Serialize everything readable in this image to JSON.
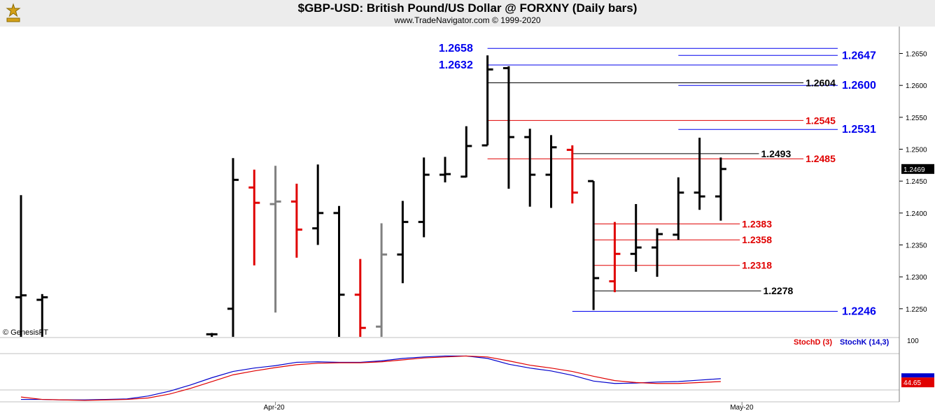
{
  "header": {
    "title": "$GBP-USD:  British Pound/US Dollar @ FORXNY  (Daily bars)",
    "subtitle": "www.TradeNavigator.com © 1999-2020"
  },
  "watermark": "© GenesisFT",
  "colors": {
    "up": "#000000",
    "down": "#e00000",
    "neutral": "#808080",
    "blue_level": "#0000ee",
    "red_level": "#e00000",
    "black_level": "#000000",
    "stochK": "#0000cc",
    "stochD": "#e00000"
  },
  "chart_data": [
    {
      "type": "ohlc",
      "title": "$GBP-USD:  British Pound/US Dollar @ FORXNY  (Daily bars)",
      "ylim": [
        1.2206,
        1.269
      ],
      "y_ticks": [
        "1.2650",
        "1.2600",
        "1.2550",
        "1.2500",
        "1.2450",
        "1.2400",
        "1.2350",
        "1.2300",
        "1.2250"
      ],
      "x_labels": [
        {
          "label": "Apr-20",
          "index": 12
        },
        {
          "label": "May-20",
          "index": 34
        }
      ],
      "last_price": "1.2469",
      "bars": [
        {
          "i": 0,
          "o": 1.2268,
          "h": 1.2428,
          "l": 1.2206,
          "c": 1.2271,
          "color": "up"
        },
        {
          "i": 1,
          "o": 1.2264,
          "h": 1.2273,
          "l": 1.2206,
          "c": 1.2268,
          "color": "up"
        },
        {
          "i": 9,
          "o": 1.221,
          "h": 1.2212,
          "l": 1.2206,
          "c": 1.221,
          "color": "up"
        },
        {
          "i": 10,
          "o": 1.225,
          "h": 1.2486,
          "l": 1.2206,
          "c": 1.2452,
          "color": "up"
        },
        {
          "i": 11,
          "o": 1.244,
          "h": 1.2468,
          "l": 1.2318,
          "c": 1.2416,
          "color": "down"
        },
        {
          "i": 12,
          "o": 1.2414,
          "h": 1.2474,
          "l": 1.2244,
          "c": 1.2418,
          "color": "neutral"
        },
        {
          "i": 13,
          "o": 1.2418,
          "h": 1.2446,
          "l": 1.233,
          "c": 1.2374,
          "color": "down"
        },
        {
          "i": 14,
          "o": 1.2376,
          "h": 1.2476,
          "l": 1.235,
          "c": 1.24,
          "color": "up"
        },
        {
          "i": 15,
          "o": 1.24,
          "h": 1.2411,
          "l": 1.2206,
          "c": 1.2272,
          "color": "up"
        },
        {
          "i": 16,
          "o": 1.2272,
          "h": 1.2328,
          "l": 1.2206,
          "c": 1.222,
          "color": "down"
        },
        {
          "i": 17,
          "o": 1.2222,
          "h": 1.2384,
          "l": 1.2206,
          "c": 1.2335,
          "color": "neutral"
        },
        {
          "i": 18,
          "o": 1.2335,
          "h": 1.2419,
          "l": 1.229,
          "c": 1.2386,
          "color": "up"
        },
        {
          "i": 19,
          "o": 1.2386,
          "h": 1.2487,
          "l": 1.2362,
          "c": 1.246,
          "color": "up"
        },
        {
          "i": 20,
          "o": 1.246,
          "h": 1.2488,
          "l": 1.2448,
          "c": 1.2461,
          "color": "up"
        },
        {
          "i": 21,
          "o": 1.2457,
          "h": 1.2536,
          "l": 1.2456,
          "c": 1.2505,
          "color": "up"
        },
        {
          "i": 22,
          "o": 1.2506,
          "h": 1.2647,
          "l": 1.2506,
          "c": 1.2625,
          "color": "up"
        },
        {
          "i": 23,
          "o": 1.2627,
          "h": 1.263,
          "l": 1.2438,
          "c": 1.2519,
          "color": "up"
        },
        {
          "i": 24,
          "o": 1.2519,
          "h": 1.2532,
          "l": 1.241,
          "c": 1.246,
          "color": "up"
        },
        {
          "i": 25,
          "o": 1.246,
          "h": 1.2522,
          "l": 1.2408,
          "c": 1.2503,
          "color": "up"
        },
        {
          "i": 26,
          "o": 1.2499,
          "h": 1.2506,
          "l": 1.2415,
          "c": 1.2432,
          "color": "down"
        },
        {
          "i": 27,
          "o": 1.245,
          "h": 1.245,
          "l": 1.2248,
          "c": 1.2298,
          "color": "up"
        },
        {
          "i": 28,
          "o": 1.2293,
          "h": 1.2386,
          "l": 1.2276,
          "c": 1.2336,
          "color": "down"
        },
        {
          "i": 29,
          "o": 1.2336,
          "h": 1.2414,
          "l": 1.2308,
          "c": 1.2346,
          "color": "up"
        },
        {
          "i": 30,
          "o": 1.2346,
          "h": 1.2376,
          "l": 1.23,
          "c": 1.2367,
          "color": "up"
        },
        {
          "i": 31,
          "o": 1.2366,
          "h": 1.2456,
          "l": 1.2358,
          "c": 1.2432,
          "color": "up"
        },
        {
          "i": 32,
          "o": 1.2432,
          "h": 1.2518,
          "l": 1.2405,
          "c": 1.2426,
          "color": "up"
        },
        {
          "i": 33,
          "o": 1.2426,
          "h": 1.2487,
          "l": 1.2388,
          "c": 1.2469,
          "color": "up"
        }
      ],
      "levels": [
        {
          "label": "1.2658",
          "value": 1.2658,
          "color": "blue",
          "from": 22,
          "to": 40,
          "label_at": "left",
          "label_index": 19.7
        },
        {
          "label": "1.2632",
          "value": 1.2632,
          "color": "blue",
          "from": 22,
          "to": 40,
          "label_at": "left",
          "label_index": 19.7
        },
        {
          "label": "1.2647",
          "value": 1.2647,
          "color": "blue",
          "from": 31,
          "to": 40,
          "label_at": "right"
        },
        {
          "label": "1.2600",
          "value": 1.26,
          "color": "blue",
          "from": 31,
          "to": 40,
          "label_at": "right"
        },
        {
          "label": "1.2531",
          "value": 1.2531,
          "color": "blue",
          "from": 31,
          "to": 40,
          "label_at": "right"
        },
        {
          "label": "1.2246",
          "value": 1.2246,
          "color": "blue",
          "from": 26,
          "to": 40,
          "label_at": "right"
        },
        {
          "label": "1.2604",
          "value": 1.2604,
          "color": "black",
          "from": 22,
          "to": 36.9,
          "label_at": "end"
        },
        {
          "label": "1.2493",
          "value": 1.2493,
          "color": "black",
          "from": 26,
          "to": 34.8,
          "label_at": "end"
        },
        {
          "label": "1.2278",
          "value": 1.2278,
          "color": "black",
          "from": 27,
          "to": 34.9,
          "label_at": "end"
        },
        {
          "label": "1.2545",
          "value": 1.2545,
          "color": "red",
          "from": 22,
          "to": 36.9,
          "label_at": "end"
        },
        {
          "label": "1.2485",
          "value": 1.2485,
          "color": "red",
          "from": 22,
          "to": 36.9,
          "label_at": "end"
        },
        {
          "label": "1.2383",
          "value": 1.2383,
          "color": "red",
          "from": 27,
          "to": 33.9,
          "label_at": "end"
        },
        {
          "label": "1.2358",
          "value": 1.2358,
          "color": "red",
          "from": 27,
          "to": 33.9,
          "label_at": "end"
        },
        {
          "label": "1.2318",
          "value": 1.2318,
          "color": "red",
          "from": 27,
          "to": 33.9,
          "label_at": "end"
        }
      ]
    },
    {
      "type": "line",
      "title": "",
      "legend": [
        {
          "name": "StochD (3)",
          "color": "red"
        },
        {
          "name": "StochK (14,3)",
          "color": "blue"
        }
      ],
      "ylim": [
        0,
        100
      ],
      "y_ticks": [
        "100"
      ],
      "last_value": "44.65",
      "series": [
        {
          "name": "StochK (14,3)",
          "color": "blue",
          "x": [
            0,
            1,
            2,
            3,
            4,
            5,
            6,
            7,
            8,
            9,
            10,
            11,
            12,
            13,
            14,
            15,
            16,
            17,
            18,
            19,
            20,
            21,
            22,
            23,
            24,
            25,
            26,
            27,
            28,
            29,
            30,
            31,
            32,
            33
          ],
          "values": [
            5,
            5,
            4,
            4,
            5,
            6,
            12,
            22,
            35,
            50,
            63,
            70,
            75,
            82,
            83,
            82,
            82,
            85,
            90,
            93,
            95,
            95,
            90,
            78,
            70,
            64,
            55,
            43,
            38,
            39,
            41,
            42,
            45,
            48
          ]
        },
        {
          "name": "StochD (3)",
          "color": "red",
          "x": [
            0,
            1,
            2,
            3,
            4,
            5,
            6,
            7,
            8,
            9,
            10,
            11,
            12,
            13,
            14,
            15,
            16,
            17,
            18,
            19,
            20,
            21,
            22,
            23,
            24,
            25,
            26,
            27,
            28,
            29,
            30,
            31,
            32,
            33
          ],
          "values": [
            10,
            5,
            4,
            3,
            4,
            5,
            8,
            16,
            28,
            42,
            56,
            64,
            71,
            77,
            80,
            81,
            81,
            83,
            87,
            91,
            93,
            95,
            93,
            85,
            76,
            70,
            63,
            53,
            44,
            40,
            38,
            38,
            40,
            42
          ]
        }
      ]
    }
  ]
}
